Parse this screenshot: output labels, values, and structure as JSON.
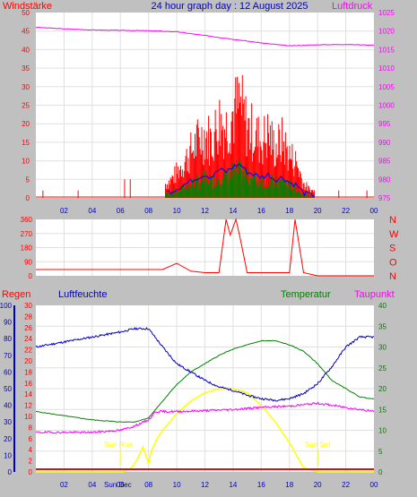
{
  "header": {
    "title": "24 hour graph day : 12 August 2025",
    "left_label": "Windstärke",
    "right_label": "Luftdruck"
  },
  "panel2": {
    "compass": [
      "N",
      "W",
      "S",
      "O",
      "N"
    ]
  },
  "panel3": {
    "labels": {
      "regen": "Regen",
      "luftfeuchte": "Luftfeuchte",
      "temperatur": "Temperatur",
      "taupunkt": "Taupunkt"
    },
    "sun_rise": "Sun Rise",
    "sun_set": "Sun Set",
    "sun_label_bottom": "Sun Dec"
  },
  "colors": {
    "background": "#c0c0c0",
    "plot_bg": "#ffffff",
    "grid": "#e0e0e0",
    "wind": "#ff0000",
    "gust": "#0000ff",
    "avg": "#008000",
    "pressure": "#ff00ff",
    "direction": "#ff0000",
    "humidity": "#0000c0",
    "temperature": "#008000",
    "dewpoint": "#ff00ff",
    "solar": "#ffff00",
    "rain": "#ff0000",
    "axis_blue": "#0000c0",
    "axis_red": "#ff0000",
    "axis_green": "#008000"
  },
  "chart_data": [
    {
      "type": "bar",
      "title": "24 hour graph day : 12 August 2025",
      "x_ticks": [
        "02",
        "04",
        "06",
        "08",
        "10",
        "12",
        "14",
        "16",
        "18",
        "20",
        "22",
        "00"
      ],
      "y_left_ticks": [
        0,
        5,
        10,
        15,
        20,
        25,
        30,
        35,
        40,
        45,
        50
      ],
      "y_right_ticks": [
        975,
        980,
        985,
        990,
        995,
        1000,
        1005,
        1010,
        1015,
        1020,
        1025
      ],
      "ylim_left": [
        0,
        50
      ],
      "ylim_right": [
        975,
        1025
      ],
      "series": [
        {
          "name": "Windstärke",
          "axis": "left",
          "x": [
            0.5,
            3,
            6.5,
            9.3,
            9.8,
            10.5,
            11,
            11.5,
            12,
            12.5,
            13,
            13.5,
            14,
            14.5,
            15,
            15.5,
            16,
            16.5,
            17,
            17.5,
            18,
            18.5,
            19,
            19.5,
            21.5,
            23.5
          ],
          "y": [
            2,
            2,
            5,
            4,
            6,
            10,
            13,
            16,
            18,
            16,
            22,
            20,
            24,
            26,
            20,
            18,
            16,
            18,
            14,
            16,
            12,
            10,
            4,
            2,
            2,
            2
          ]
        },
        {
          "name": "Luftdruck",
          "axis": "right",
          "x": [
            0,
            2,
            4,
            6,
            8,
            10,
            12,
            14,
            16,
            18,
            20,
            22,
            24
          ],
          "y": [
            1021,
            1020.6,
            1020.3,
            1020.2,
            1020.1,
            1019.8,
            1018.8,
            1017.8,
            1016.8,
            1016,
            1016.3,
            1016.4,
            1016.2
          ]
        }
      ]
    },
    {
      "type": "line",
      "y_ticks": [
        0,
        90,
        180,
        270,
        360
      ],
      "ylim": [
        0,
        360
      ],
      "x": [
        0,
        2,
        4,
        6,
        8,
        9,
        10,
        11,
        12,
        13,
        13.5,
        13.8,
        14.2,
        14.5,
        15,
        16,
        17,
        18,
        18.4,
        19,
        20,
        22,
        24
      ],
      "y": [
        40,
        40,
        40,
        40,
        40,
        40,
        80,
        30,
        20,
        20,
        360,
        260,
        360,
        240,
        20,
        20,
        20,
        20,
        360,
        20,
        0,
        0,
        0
      ]
    },
    {
      "type": "line",
      "x_ticks": [
        "02",
        "04",
        "06",
        "08",
        "10",
        "12",
        "14",
        "16",
        "18",
        "20",
        "22",
        "00"
      ],
      "y_regen_ticks": [
        0,
        10,
        20,
        30,
        40,
        50,
        60,
        70,
        80,
        90,
        100
      ],
      "y_luftfeuchte_ticks": [
        0,
        2,
        4,
        6,
        8,
        10,
        12,
        14,
        16,
        18,
        20,
        22,
        24,
        26,
        28,
        30
      ],
      "y_temp_ticks": [
        0,
        5,
        10,
        15,
        20,
        25,
        30,
        35,
        40
      ],
      "ylim_luftfeuchte": [
        0,
        100
      ],
      "ylim_temp": [
        0,
        40
      ],
      "series": [
        {
          "name": "Luftfeuchte",
          "axis": "luftfeuchte",
          "x": [
            0,
            2,
            4,
            6,
            7,
            8,
            9,
            10,
            11,
            12,
            13,
            14,
            15,
            16,
            17,
            18,
            19,
            20,
            21,
            22,
            23,
            24
          ],
          "y": [
            75,
            78,
            81,
            84,
            86,
            86,
            75,
            65,
            60,
            55,
            51,
            49,
            46,
            44,
            43,
            44,
            47,
            53,
            63,
            75,
            81,
            81
          ]
        },
        {
          "name": "Temperatur",
          "axis": "temp",
          "x": [
            0,
            2,
            4,
            6,
            7,
            8,
            9,
            10,
            11,
            12,
            13,
            14,
            15,
            16,
            17,
            18,
            19,
            20,
            21,
            22,
            23,
            24
          ],
          "y": [
            14.5,
            13.5,
            12.5,
            12,
            12,
            13,
            17,
            21,
            24,
            26,
            28,
            29.5,
            30.5,
            31.5,
            31.5,
            30.5,
            29,
            26,
            22,
            20,
            18,
            17.5
          ]
        },
        {
          "name": "Taupunkt",
          "axis": "temp",
          "x": [
            0,
            2,
            4,
            6,
            7,
            8,
            8.5,
            10,
            12,
            14,
            16,
            18,
            20,
            22,
            24
          ],
          "y": [
            9.5,
            9.5,
            9.5,
            10,
            11,
            12.5,
            14.5,
            14.5,
            14.7,
            15,
            15.5,
            15.8,
            16.5,
            15.5,
            14.5
          ]
        },
        {
          "name": "Solar",
          "axis": "temp",
          "x": [
            0,
            6.2,
            6.8,
            7.2,
            7.6,
            7.8,
            8,
            8.2,
            8.6,
            9,
            10,
            11,
            12,
            13,
            14,
            15,
            16,
            17,
            18,
            18.5,
            19,
            20,
            24
          ],
          "y": [
            0,
            0,
            1,
            3,
            6,
            4,
            2,
            5,
            8,
            10,
            14,
            17,
            19,
            20,
            20,
            19,
            16,
            12,
            7,
            4,
            1,
            0,
            0
          ]
        }
      ]
    }
  ]
}
